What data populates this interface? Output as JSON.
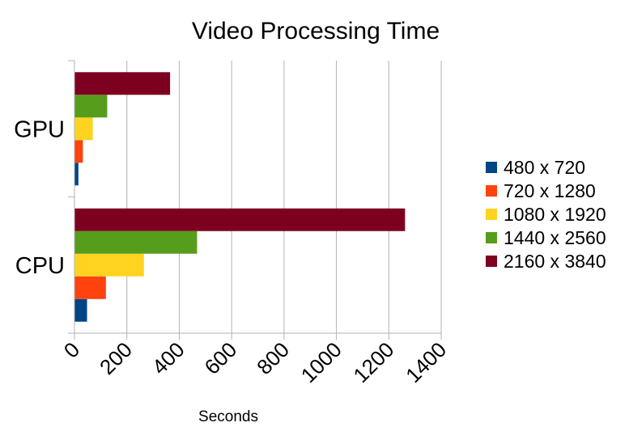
{
  "chart_data": {
    "type": "bar",
    "orientation": "horizontal",
    "title": "Video Processing Time",
    "xlabel": "Seconds",
    "ylabel": "",
    "xlim": [
      0,
      1400
    ],
    "xticks": [
      0,
      200,
      400,
      600,
      800,
      1000,
      1200,
      1400
    ],
    "categories": [
      "GPU",
      "CPU"
    ],
    "series": [
      {
        "name": "480 x 720",
        "color": "#004586",
        "values": [
          15,
          48
        ]
      },
      {
        "name": "720 x 1280",
        "color": "#ff420e",
        "values": [
          32,
          120
        ]
      },
      {
        "name": "1080 x 1920",
        "color": "#ffd320",
        "values": [
          70,
          265
        ]
      },
      {
        "name": "1440 x 2560",
        "color": "#579d1c",
        "values": [
          125,
          468
        ]
      },
      {
        "name": "2160 x 3840",
        "color": "#7e0021",
        "values": [
          365,
          1262
        ]
      }
    ],
    "grid": true,
    "legend": "right"
  }
}
